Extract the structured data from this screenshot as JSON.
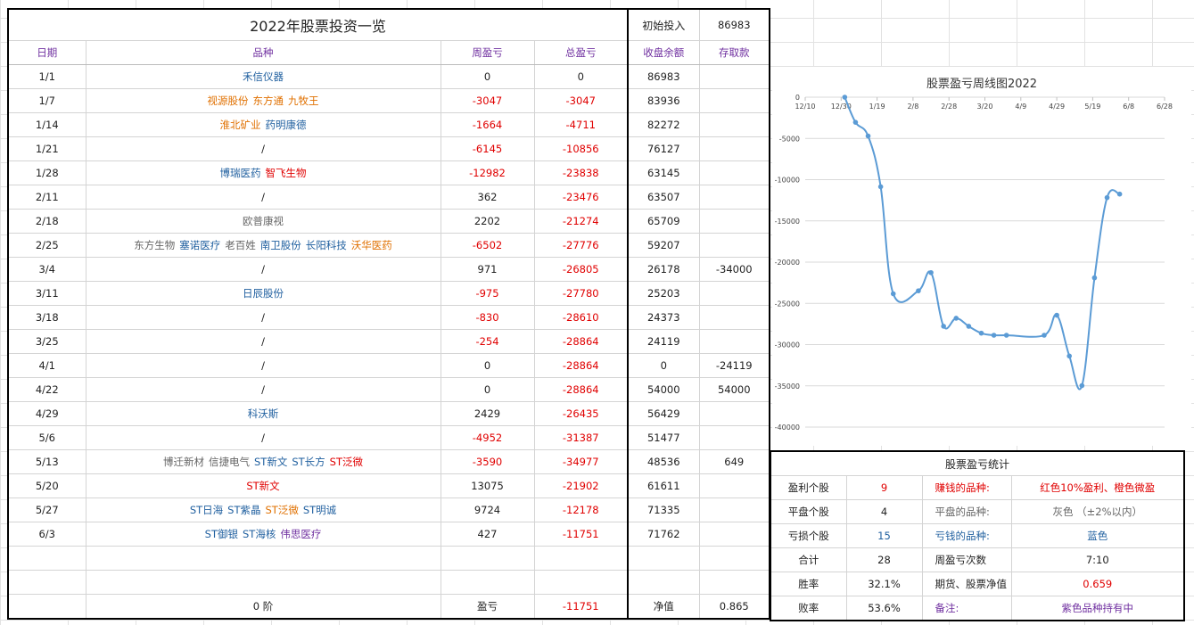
{
  "sheet": {
    "title": "2022年股票投资一览",
    "initial_label": "初始投入",
    "initial_value": "86983",
    "headers": [
      "日期",
      "品种",
      "周盈亏",
      "总盈亏",
      "收盘余额",
      "存取款"
    ],
    "rows": [
      {
        "date": "1/1",
        "variety": [
          {
            "t": "禾信仪器",
            "c": "blue"
          }
        ],
        "week": "0",
        "total": "0",
        "balance": "86983",
        "deposit": ""
      },
      {
        "date": "1/7",
        "variety": [
          {
            "t": "视源股份",
            "c": "orange"
          },
          {
            "t": "东方通",
            "c": "orange"
          },
          {
            "t": "九牧王",
            "c": "orange"
          }
        ],
        "week": "-3047",
        "total": "-3047",
        "balance": "83936",
        "deposit": ""
      },
      {
        "date": "1/14",
        "variety": [
          {
            "t": "淮北矿业",
            "c": "orange"
          },
          {
            "t": "药明康德",
            "c": "blue"
          }
        ],
        "week": "-1664",
        "total": "-4711",
        "balance": "82272",
        "deposit": ""
      },
      {
        "date": "1/21",
        "variety": [
          {
            "t": "/",
            "c": "dark"
          }
        ],
        "week": "-6145",
        "total": "-10856",
        "balance": "76127",
        "deposit": ""
      },
      {
        "date": "1/28",
        "variety": [
          {
            "t": "博瑞医药",
            "c": "blue"
          },
          {
            "t": "智飞生物",
            "c": "red"
          }
        ],
        "week": "-12982",
        "total": "-23838",
        "balance": "63145",
        "deposit": ""
      },
      {
        "date": "2/11",
        "variety": [
          {
            "t": "/",
            "c": "dark"
          }
        ],
        "week": "362",
        "total": "-23476",
        "balance": "63507",
        "deposit": ""
      },
      {
        "date": "2/18",
        "variety": [
          {
            "t": "欧普康视",
            "c": "gray"
          }
        ],
        "week": "2202",
        "total": "-21274",
        "balance": "65709",
        "deposit": ""
      },
      {
        "date": "2/25",
        "variety": [
          {
            "t": "东方生物",
            "c": "gray"
          },
          {
            "t": "塞诺医疗",
            "c": "blue"
          },
          {
            "t": "老百姓",
            "c": "gray"
          },
          {
            "t": "南卫股份",
            "c": "blue"
          },
          {
            "t": "长阳科技",
            "c": "blue"
          },
          {
            "t": "沃华医药",
            "c": "orange"
          }
        ],
        "week": "-6502",
        "total": "-27776",
        "balance": "59207",
        "deposit": ""
      },
      {
        "date": "3/4",
        "variety": [
          {
            "t": "/",
            "c": "dark"
          }
        ],
        "week": "971",
        "total": "-26805",
        "balance": "26178",
        "deposit": "-34000"
      },
      {
        "date": "3/11",
        "variety": [
          {
            "t": "日辰股份",
            "c": "blue"
          }
        ],
        "week": "-975",
        "total": "-27780",
        "balance": "25203",
        "deposit": ""
      },
      {
        "date": "3/18",
        "variety": [
          {
            "t": "/",
            "c": "dark"
          }
        ],
        "week": "-830",
        "total": "-28610",
        "balance": "24373",
        "deposit": ""
      },
      {
        "date": "3/25",
        "variety": [
          {
            "t": "/",
            "c": "dark"
          }
        ],
        "week": "-254",
        "total": "-28864",
        "balance": "24119",
        "deposit": ""
      },
      {
        "date": "4/1",
        "variety": [
          {
            "t": "/",
            "c": "dark"
          }
        ],
        "week": "0",
        "total": "-28864",
        "balance": "0",
        "deposit": "-24119"
      },
      {
        "date": "4/22",
        "variety": [
          {
            "t": "/",
            "c": "dark"
          }
        ],
        "week": "0",
        "total": "-28864",
        "balance": "54000",
        "deposit": "54000"
      },
      {
        "date": "4/29",
        "variety": [
          {
            "t": "科沃斯",
            "c": "blue"
          }
        ],
        "week": "2429",
        "total": "-26435",
        "balance": "56429",
        "deposit": ""
      },
      {
        "date": "5/6",
        "variety": [
          {
            "t": "/",
            "c": "dark"
          }
        ],
        "week": "-4952",
        "total": "-31387",
        "balance": "51477",
        "deposit": ""
      },
      {
        "date": "5/13",
        "variety": [
          {
            "t": "博迁新材",
            "c": "gray"
          },
          {
            "t": "信捷电气",
            "c": "gray"
          },
          {
            "t": "ST新文",
            "c": "blue"
          },
          {
            "t": "ST长方",
            "c": "blue"
          },
          {
            "t": "ST泛微",
            "c": "red"
          }
        ],
        "week": "-3590",
        "total": "-34977",
        "balance": "48536",
        "deposit": "649"
      },
      {
        "date": "5/20",
        "variety": [
          {
            "t": "ST新文",
            "c": "red"
          }
        ],
        "week": "13075",
        "total": "-21902",
        "balance": "61611",
        "deposit": ""
      },
      {
        "date": "5/27",
        "variety": [
          {
            "t": "ST日海",
            "c": "blue"
          },
          {
            "t": "ST紫晶",
            "c": "blue"
          },
          {
            "t": "ST泛微",
            "c": "orange"
          },
          {
            "t": "ST明诚",
            "c": "blue"
          }
        ],
        "week": "9724",
        "total": "-12178",
        "balance": "71335",
        "deposit": ""
      },
      {
        "date": "6/3",
        "variety": [
          {
            "t": "ST御银",
            "c": "blue"
          },
          {
            "t": "ST海核",
            "c": "blue"
          },
          {
            "t": "伟思医疗",
            "c": "purple"
          }
        ],
        "week": "427",
        "total": "-11751",
        "balance": "71762",
        "deposit": ""
      }
    ],
    "footer": {
      "stage": "0 阶",
      "pl_label": "盈亏",
      "pl_value": "-11751",
      "nav_label": "净值",
      "nav_value": "0.865"
    }
  },
  "stats": {
    "title": "股票盈亏统计",
    "rows": [
      {
        "k": "盈利个股",
        "v": "9",
        "v_color": "red",
        "k2": "赚钱的品种:",
        "v2": "红色10%盈利、橙色微盈",
        "k2_color": "red",
        "v2_color": "red"
      },
      {
        "k": "平盘个股",
        "v": "4",
        "v_color": "dark",
        "k2": "平盘的品种:",
        "v2": "灰色 （±2%以内）",
        "k2_color": "gray",
        "v2_color": "gray"
      },
      {
        "k": "亏损个股",
        "v": "15",
        "v_color": "blue",
        "k2": "亏钱的品种:",
        "v2": "蓝色",
        "k2_color": "blue",
        "v2_color": "blue"
      },
      {
        "k": "合计",
        "v": "28",
        "v_color": "dark",
        "k2": "周盈亏次数",
        "v2": "7:10",
        "k2_color": "dark",
        "v2_color": "dark"
      },
      {
        "k": "胜率",
        "v": "32.1%",
        "v_color": "dark",
        "k2": "期货、股票净值",
        "v2": "0.659",
        "k2_color": "dark",
        "v2_color": "red"
      },
      {
        "k": "败率",
        "v": "53.6%",
        "v_color": "dark",
        "k2": "备注:",
        "v2": "紫色品种持有中",
        "k2_color": "purple",
        "v2_color": "purple"
      }
    ]
  },
  "colors": {
    "red": "#e00000",
    "blue": "#1f5f9f",
    "orange": "#e07000",
    "gray": "#666666",
    "purple": "#7030a0",
    "dark": "#222222",
    "line": "#5b9bd5"
  },
  "chart_data": {
    "type": "line",
    "title": "股票盈亏周线图2022",
    "x_ticks": [
      "12/10",
      "12/30",
      "1/19",
      "2/8",
      "2/28",
      "3/20",
      "4/9",
      "4/29",
      "5/19",
      "6/8",
      "6/28"
    ],
    "y_ticks": [
      "0",
      "-5000",
      "-10000",
      "-15000",
      "-20000",
      "-25000",
      "-30000",
      "-35000",
      "-40000"
    ],
    "ylim": [
      -40000,
      0
    ],
    "series": [
      {
        "x": [
          "2022-01-01",
          "2022-01-07",
          "2022-01-14",
          "2022-01-21",
          "2022-01-28",
          "2022-02-11",
          "2022-02-18",
          "2022-02-25",
          "2022-03-04",
          "2022-03-11",
          "2022-03-18",
          "2022-03-25",
          "2022-04-01",
          "2022-04-22",
          "2022-04-29",
          "2022-05-06",
          "2022-05-13",
          "2022-05-20",
          "2022-05-27",
          "2022-06-03"
        ],
        "y": [
          0,
          -3047,
          -4711,
          -10856,
          -23838,
          -23476,
          -21274,
          -27776,
          -26805,
          -27780,
          -28610,
          -28864,
          -28864,
          -28864,
          -26435,
          -31387,
          -34977,
          -21902,
          -12178,
          -11751
        ]
      }
    ]
  }
}
